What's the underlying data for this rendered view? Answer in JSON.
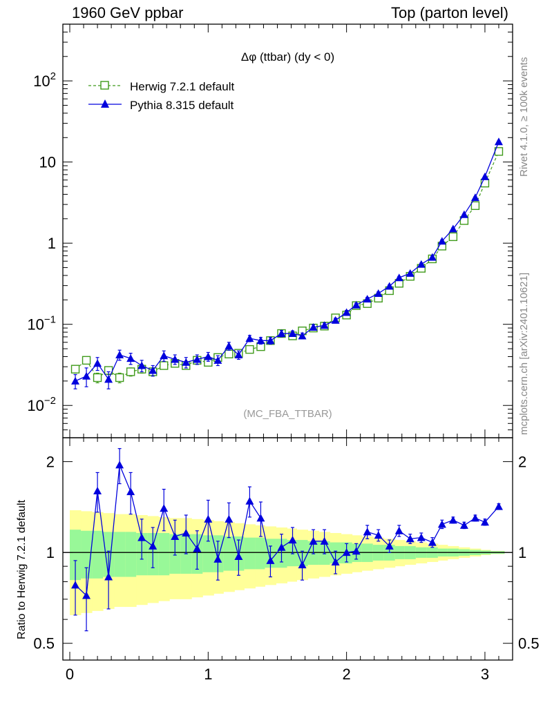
{
  "header": {
    "left": "1960 GeV ppbar",
    "right": "Top (parton level)"
  },
  "side_labels": {
    "rivet": "Rivet 4.1.0, ≥ 100k events",
    "mcplots": "mcplots.cern.ch [arXiv:2401.10621]"
  },
  "colors": {
    "herwig": "#3f9a1a",
    "pythia": "#0000dd",
    "band_inner": "#98f898",
    "band_outer": "#ffff99"
  },
  "chart_data": [
    {
      "type": "line",
      "title": "Δφ (ttbar) (dy < 0)",
      "watermark": "(MC_FBA_TTBAR)",
      "yscale": "log",
      "xlim": [
        -0.05,
        3.2
      ],
      "ylim": [
        0.004,
        500
      ],
      "yticks": [
        {
          "value": 0.01,
          "label": "10^-2"
        },
        {
          "value": 0.1,
          "label": "10^-1"
        },
        {
          "value": 1,
          "label": "1"
        },
        {
          "value": 10,
          "label": "10"
        },
        {
          "value": 100,
          "label": "10^2"
        }
      ],
      "legend": [
        "Herwig 7.2.1 default",
        "Pythia 8.315 default"
      ],
      "x": [
        0.04,
        0.12,
        0.2,
        0.28,
        0.36,
        0.44,
        0.52,
        0.6,
        0.68,
        0.76,
        0.84,
        0.92,
        1.0,
        1.07,
        1.15,
        1.22,
        1.3,
        1.38,
        1.45,
        1.53,
        1.61,
        1.68,
        1.76,
        1.84,
        1.92,
        2.0,
        2.07,
        2.15,
        2.23,
        2.31,
        2.38,
        2.46,
        2.54,
        2.62,
        2.69,
        2.77,
        2.85,
        2.93,
        3.0,
        3.1
      ],
      "series": [
        {
          "name": "Herwig 7.2.1 default",
          "marker": "open-square",
          "values": [
            0.028,
            0.036,
            0.022,
            0.027,
            0.022,
            0.026,
            0.028,
            0.026,
            0.031,
            0.033,
            0.031,
            0.036,
            0.034,
            0.039,
            0.043,
            0.044,
            0.049,
            0.053,
            0.063,
            0.077,
            0.072,
            0.083,
            0.09,
            0.095,
            0.12,
            0.13,
            0.17,
            0.18,
            0.21,
            0.26,
            0.32,
            0.39,
            0.49,
            0.64,
            0.92,
            1.2,
            1.9,
            2.9,
            5.5,
            13.5
          ],
          "errors": [
            0.003,
            0.003,
            0.003,
            0.003,
            0.003,
            0.003,
            0.003,
            0.003,
            0.003,
            0.003,
            0.003,
            0.003,
            0.003,
            0.003,
            0.003,
            0.003,
            0.003,
            0.003,
            0.004,
            0.005,
            0.005,
            0.005,
            0.005,
            0.005,
            0.006,
            0.006,
            0.007,
            0.007,
            0.008,
            0.01,
            0.012,
            0.014,
            0.016,
            0.02,
            0.03,
            0.04,
            0.05,
            0.08,
            0.15,
            0.4
          ]
        },
        {
          "name": "Pythia 8.315 default",
          "marker": "filled-triangle",
          "values": [
            0.02,
            0.023,
            0.033,
            0.021,
            0.042,
            0.038,
            0.031,
            0.027,
            0.041,
            0.037,
            0.034,
            0.037,
            0.04,
            0.036,
            0.054,
            0.042,
            0.067,
            0.063,
            0.063,
            0.077,
            0.077,
            0.072,
            0.092,
            0.097,
            0.112,
            0.14,
            0.173,
            0.205,
            0.24,
            0.295,
            0.375,
            0.425,
            0.55,
            0.67,
            1.06,
            1.5,
            2.25,
            3.65,
            6.6,
            17.8
          ],
          "errors": [
            0.004,
            0.006,
            0.006,
            0.005,
            0.006,
            0.006,
            0.005,
            0.004,
            0.006,
            0.005,
            0.005,
            0.005,
            0.005,
            0.005,
            0.006,
            0.005,
            0.006,
            0.006,
            0.006,
            0.007,
            0.006,
            0.006,
            0.007,
            0.007,
            0.007,
            0.008,
            0.009,
            0.01,
            0.011,
            0.012,
            0.014,
            0.016,
            0.02,
            0.025,
            0.04,
            0.05,
            0.07,
            0.1,
            0.2,
            0.5
          ]
        }
      ]
    },
    {
      "type": "line",
      "ylabel": "Ratio to Herwig 7.2.1 default",
      "yscale": "log",
      "xlim": [
        -0.05,
        3.2
      ],
      "ylim": [
        0.44,
        2.4
      ],
      "yticks": [
        {
          "value": 0.5,
          "label": "0.5"
        },
        {
          "value": 1,
          "label": "1"
        },
        {
          "value": 2,
          "label": "2"
        }
      ],
      "xticks": [
        {
          "value": 0,
          "label": "0"
        },
        {
          "value": 1,
          "label": "1"
        },
        {
          "value": 2,
          "label": "2"
        },
        {
          "value": 3,
          "label": "3"
        }
      ],
      "reference": 1,
      "x": [
        0.04,
        0.12,
        0.2,
        0.28,
        0.36,
        0.44,
        0.52,
        0.6,
        0.68,
        0.76,
        0.84,
        0.92,
        1.0,
        1.07,
        1.15,
        1.22,
        1.3,
        1.38,
        1.45,
        1.53,
        1.61,
        1.68,
        1.76,
        1.84,
        1.92,
        2.0,
        2.07,
        2.15,
        2.23,
        2.31,
        2.38,
        2.46,
        2.54,
        2.62,
        2.69,
        2.77,
        2.85,
        2.93,
        3.0,
        3.1
      ],
      "band_x_edges": [
        0.0,
        0.08,
        0.16,
        0.24,
        0.32,
        0.4,
        0.48,
        0.56,
        0.64,
        0.72,
        0.8,
        0.88,
        0.96,
        1.04,
        1.11,
        1.19,
        1.26,
        1.34,
        1.41,
        1.49,
        1.57,
        1.64,
        1.72,
        1.8,
        1.88,
        1.96,
        2.04,
        2.11,
        2.19,
        2.27,
        2.35,
        2.42,
        2.5,
        2.58,
        2.66,
        2.73,
        2.81,
        2.89,
        2.97,
        3.04,
        3.14
      ],
      "band_inner_halfwidth": [
        0.19,
        0.18,
        0.18,
        0.17,
        0.17,
        0.17,
        0.16,
        0.16,
        0.16,
        0.15,
        0.15,
        0.15,
        0.14,
        0.14,
        0.13,
        0.13,
        0.12,
        0.12,
        0.11,
        0.11,
        0.1,
        0.1,
        0.09,
        0.09,
        0.08,
        0.08,
        0.07,
        0.07,
        0.06,
        0.06,
        0.05,
        0.05,
        0.04,
        0.04,
        0.03,
        0.03,
        0.025,
        0.02,
        0.015,
        0.01
      ],
      "band_outer_halfwidth": [
        0.38,
        0.37,
        0.36,
        0.35,
        0.34,
        0.34,
        0.33,
        0.32,
        0.31,
        0.3,
        0.3,
        0.29,
        0.28,
        0.27,
        0.26,
        0.25,
        0.24,
        0.23,
        0.22,
        0.21,
        0.2,
        0.19,
        0.18,
        0.17,
        0.16,
        0.15,
        0.14,
        0.13,
        0.12,
        0.11,
        0.1,
        0.09,
        0.08,
        0.07,
        0.06,
        0.05,
        0.04,
        0.03,
        0.02,
        0.012
      ],
      "series": [
        {
          "name": "Pythia 8.315 default",
          "values": [
            0.78,
            0.72,
            1.6,
            0.83,
            1.95,
            1.59,
            1.12,
            1.05,
            1.4,
            1.13,
            1.16,
            1.03,
            1.29,
            0.95,
            1.29,
            0.97,
            1.48,
            1.3,
            0.94,
            1.04,
            1.1,
            0.91,
            1.09,
            1.09,
            0.93,
            1.0,
            1.01,
            1.17,
            1.14,
            1.05,
            1.18,
            1.11,
            1.12,
            1.08,
            1.24,
            1.28,
            1.23,
            1.3,
            1.26,
            1.42
          ],
          "errors": [
            0.16,
            0.17,
            0.24,
            0.18,
            0.26,
            0.25,
            0.17,
            0.16,
            0.22,
            0.15,
            0.17,
            0.15,
            0.2,
            0.14,
            0.17,
            0.13,
            0.17,
            0.17,
            0.11,
            0.11,
            0.11,
            0.1,
            0.1,
            0.1,
            0.08,
            0.07,
            0.06,
            0.06,
            0.05,
            0.05,
            0.05,
            0.04,
            0.04,
            0.04,
            0.04,
            0.03,
            0.03,
            0.03,
            0.03,
            0.03
          ]
        }
      ]
    }
  ]
}
